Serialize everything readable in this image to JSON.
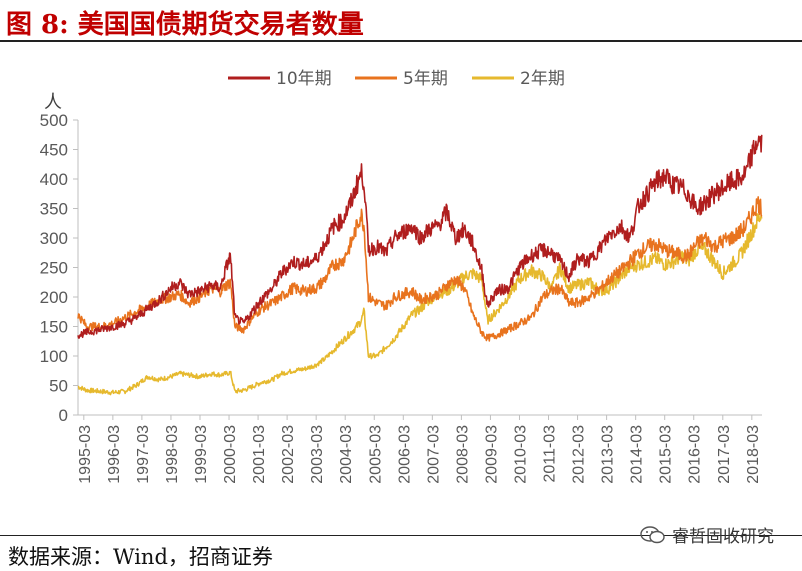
{
  "header": {
    "title": "图 8:  美国国债期货交易者数量"
  },
  "footer": {
    "source": "数据来源：Wind，招商证券",
    "watermark": "睿哲固收研究"
  },
  "colors": {
    "s10": "#b01e1e",
    "s5": "#e8731e",
    "s2": "#e6b92e",
    "title": "#c00000"
  },
  "chart_data": {
    "type": "line",
    "ylabel": "人",
    "ylim": [
      0,
      500
    ],
    "yticks": [
      0,
      50,
      100,
      150,
      200,
      250,
      300,
      350,
      400,
      450,
      500
    ],
    "xlim": [
      1995.0,
      2018.55
    ],
    "xticks": [
      "1995-03",
      "1996-03",
      "1997-03",
      "1998-03",
      "1999-03",
      "2000-03",
      "2001-03",
      "2002-03",
      "2003-03",
      "2004-03",
      "2005-03",
      "2006-03",
      "2007-03",
      "2008-03",
      "2009-03",
      "2010-03",
      "2011-03",
      "2012-03",
      "2013-03",
      "2014-03",
      "2015-03",
      "2016-03",
      "2017-03",
      "2018-03"
    ],
    "legend_position": "top",
    "series": [
      {
        "name": "10年期",
        "color": "#b01e1e",
        "x": [
          1995.0,
          1995.3,
          1995.8,
          1996.2,
          1996.6,
          1997.0,
          1997.4,
          1997.8,
          1998.2,
          1998.5,
          1998.8,
          1999.2,
          1999.6,
          1999.9,
          2000.1,
          2000.25,
          2000.4,
          2000.7,
          2001.0,
          2001.3,
          2001.7,
          2002.0,
          2002.4,
          2002.8,
          2003.2,
          2003.5,
          2003.8,
          2004.1,
          2004.4,
          2004.6,
          2004.75,
          2004.85,
          2005.0,
          2005.3,
          2005.6,
          2005.9,
          2006.2,
          2006.5,
          2006.8,
          2007.1,
          2007.4,
          2007.7,
          2008.0,
          2008.3,
          2008.6,
          2008.9,
          2009.1,
          2009.4,
          2009.8,
          2010.2,
          2010.6,
          2011.0,
          2011.3,
          2011.6,
          2011.9,
          2012.2,
          2012.6,
          2013.0,
          2013.3,
          2013.7,
          2014.0,
          2014.3,
          2014.6,
          2014.9,
          2015.2,
          2015.5,
          2015.8,
          2016.0,
          2016.3,
          2016.6,
          2016.9,
          2017.2,
          2017.5,
          2017.8,
          2018.0,
          2018.2,
          2018.4,
          2018.55
        ],
        "y": [
          135,
          140,
          145,
          150,
          155,
          165,
          180,
          195,
          215,
          225,
          205,
          210,
          220,
          215,
          250,
          270,
          165,
          155,
          175,
          195,
          215,
          240,
          260,
          255,
          265,
          290,
          320,
          330,
          360,
          390,
          410,
          395,
          280,
          285,
          275,
          300,
          310,
          320,
          300,
          315,
          320,
          345,
          300,
          315,
          290,
          245,
          185,
          210,
          215,
          250,
          270,
          280,
          275,
          260,
          235,
          265,
          260,
          285,
          305,
          320,
          300,
          355,
          375,
          395,
          405,
          390,
          385,
          375,
          350,
          360,
          375,
          385,
          395,
          400,
          410,
          440,
          465,
          460
        ]
      },
      {
        "name": "5年期",
        "color": "#e8731e",
        "x": [
          1995.0,
          1995.3,
          1995.8,
          1996.2,
          1996.6,
          1997.0,
          1997.4,
          1997.8,
          1998.2,
          1998.5,
          1998.8,
          1999.2,
          1999.6,
          1999.9,
          2000.1,
          2000.25,
          2000.4,
          2000.7,
          2001.0,
          2001.3,
          2001.7,
          2002.0,
          2002.4,
          2002.8,
          2003.2,
          2003.5,
          2003.8,
          2004.1,
          2004.4,
          2004.6,
          2004.75,
          2004.85,
          2005.0,
          2005.3,
          2005.6,
          2005.9,
          2006.2,
          2006.5,
          2006.8,
          2007.1,
          2007.4,
          2007.7,
          2008.0,
          2008.3,
          2008.6,
          2008.9,
          2009.1,
          2009.4,
          2009.8,
          2010.2,
          2010.6,
          2011.0,
          2011.3,
          2011.6,
          2011.9,
          2012.2,
          2012.6,
          2013.0,
          2013.3,
          2013.7,
          2014.0,
          2014.3,
          2014.6,
          2014.9,
          2015.2,
          2015.5,
          2015.8,
          2016.0,
          2016.3,
          2016.6,
          2016.9,
          2017.2,
          2017.5,
          2017.8,
          2018.0,
          2018.2,
          2018.4,
          2018.55
        ],
        "y": [
          170,
          150,
          150,
          155,
          165,
          175,
          185,
          195,
          200,
          205,
          190,
          200,
          215,
          210,
          220,
          225,
          150,
          145,
          165,
          180,
          190,
          200,
          215,
          210,
          215,
          230,
          255,
          260,
          290,
          320,
          340,
          320,
          200,
          190,
          185,
          200,
          205,
          210,
          195,
          200,
          205,
          220,
          230,
          215,
          170,
          140,
          130,
          135,
          145,
          155,
          165,
          200,
          210,
          215,
          190,
          190,
          200,
          215,
          230,
          245,
          260,
          275,
          285,
          290,
          280,
          275,
          270,
          270,
          290,
          300,
          285,
          295,
          300,
          310,
          320,
          340,
          360,
          350
        ]
      },
      {
        "name": "2年期",
        "color": "#e6b92e",
        "x": [
          1995.0,
          1995.3,
          1995.8,
          1996.2,
          1996.6,
          1997.0,
          1997.4,
          1997.8,
          1998.2,
          1998.5,
          1998.8,
          1999.2,
          1999.6,
          1999.9,
          2000.1,
          2000.25,
          2000.4,
          2000.7,
          2001.0,
          2001.3,
          2001.7,
          2002.0,
          2002.4,
          2002.8,
          2003.2,
          2003.5,
          2003.8,
          2004.1,
          2004.4,
          2004.6,
          2004.75,
          2004.85,
          2005.0,
          2005.3,
          2005.6,
          2005.9,
          2006.2,
          2006.5,
          2006.8,
          2007.1,
          2007.4,
          2007.7,
          2008.0,
          2008.3,
          2008.6,
          2008.9,
          2009.1,
          2009.4,
          2009.8,
          2010.2,
          2010.6,
          2011.0,
          2011.3,
          2011.6,
          2011.9,
          2012.2,
          2012.6,
          2013.0,
          2013.3,
          2013.7,
          2014.0,
          2014.3,
          2014.6,
          2014.9,
          2015.2,
          2015.5,
          2015.8,
          2016.0,
          2016.3,
          2016.6,
          2016.9,
          2017.2,
          2017.5,
          2017.8,
          2018.0,
          2018.2,
          2018.4,
          2018.55
        ],
        "y": [
          48,
          42,
          40,
          38,
          40,
          50,
          65,
          60,
          65,
          70,
          68,
          65,
          70,
          68,
          70,
          72,
          40,
          42,
          48,
          55,
          60,
          70,
          75,
          78,
          85,
          95,
          110,
          125,
          140,
          150,
          160,
          175,
          100,
          100,
          115,
          130,
          150,
          170,
          180,
          195,
          205,
          210,
          220,
          235,
          240,
          230,
          160,
          175,
          200,
          230,
          245,
          235,
          215,
          250,
          215,
          220,
          225,
          210,
          215,
          235,
          250,
          255,
          260,
          265,
          255,
          260,
          270,
          260,
          280,
          280,
          260,
          240,
          255,
          270,
          290,
          310,
          330,
          340
        ]
      }
    ]
  }
}
